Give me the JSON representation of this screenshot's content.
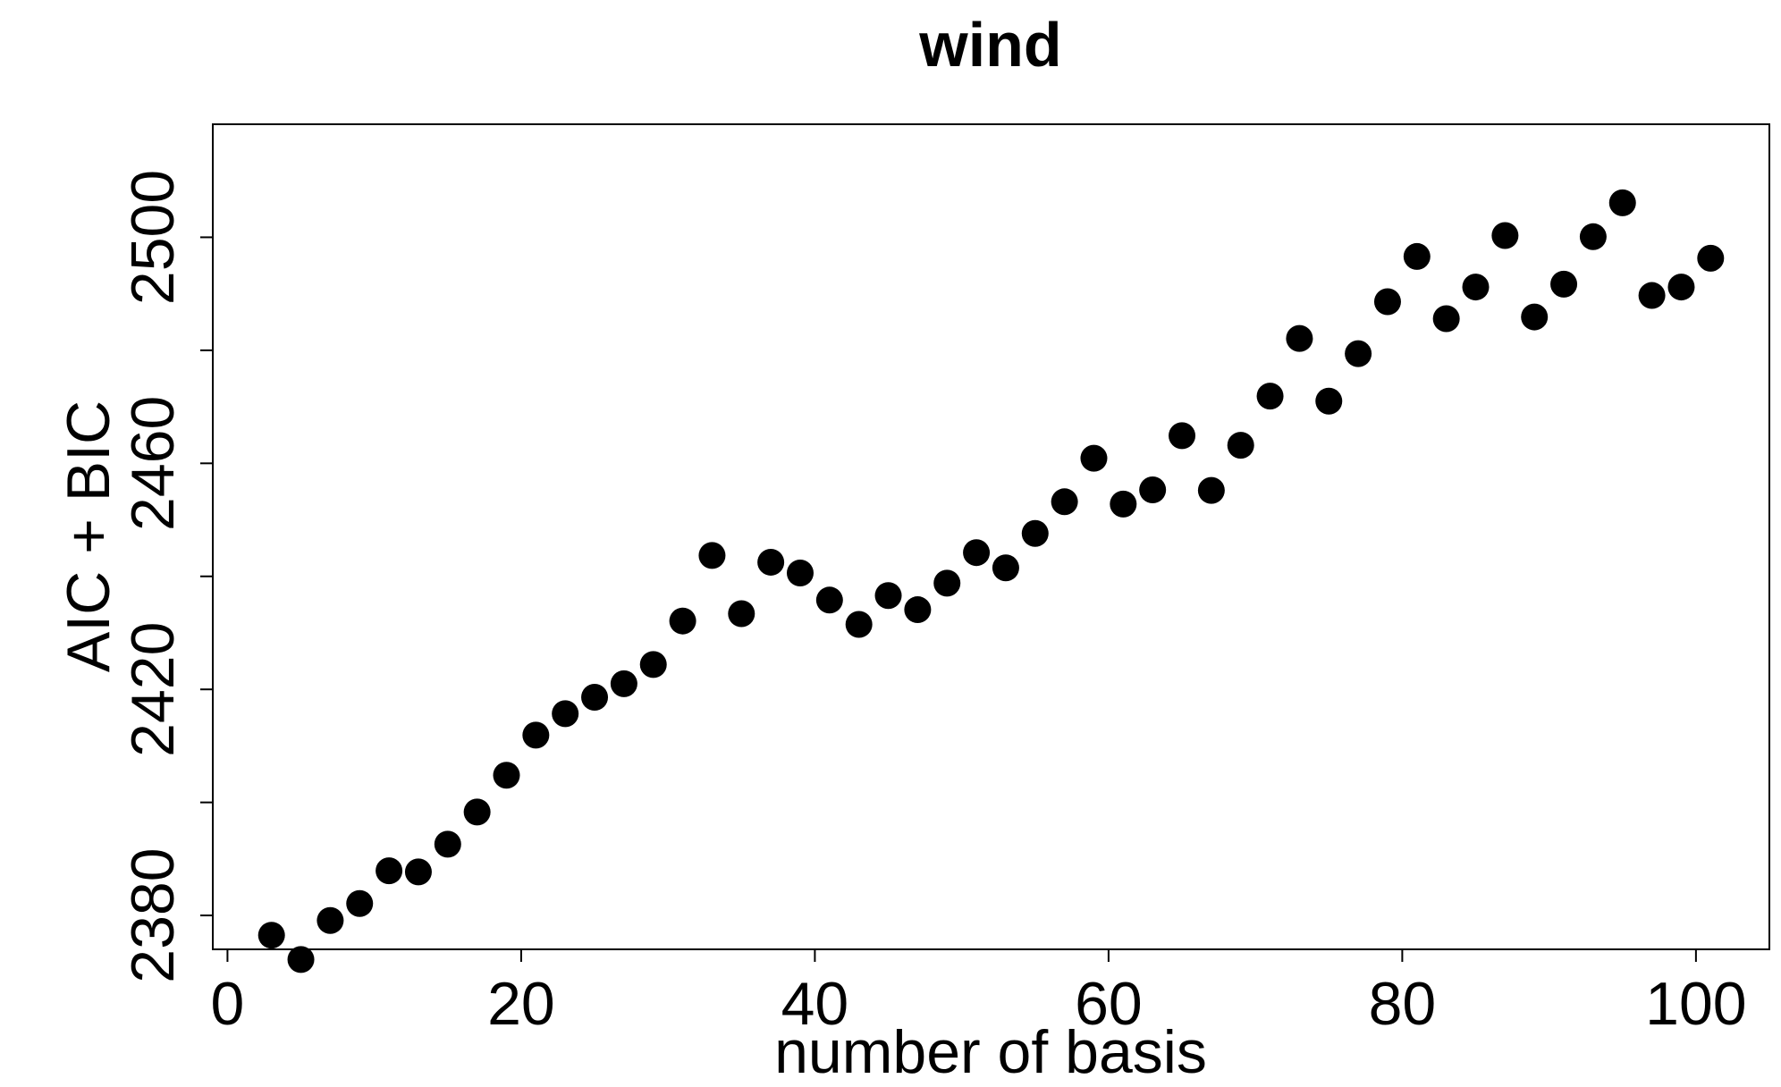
{
  "chart_data": {
    "type": "scatter",
    "title": "wind",
    "xlabel": "number of basis",
    "ylabel": "AIC + BIC",
    "xlim": [
      -1,
      105
    ],
    "ylim": [
      2374,
      2520
    ],
    "xticks": [
      0,
      20,
      40,
      60,
      80,
      100
    ],
    "xtick_labels": [
      "0",
      "20",
      "40",
      "60",
      "80",
      "100"
    ],
    "yticks": [
      2380,
      2400,
      2420,
      2440,
      2460,
      2480,
      2500
    ],
    "ytick_labels": [
      "2380",
      "",
      "2420",
      "",
      "2460",
      "",
      "2500"
    ],
    "grid": false,
    "legend": "none",
    "marker_color": "#000000",
    "series": [
      {
        "x": [
          3,
          5,
          7,
          9,
          11,
          13,
          15,
          17,
          19,
          21,
          23,
          25,
          27,
          29,
          31,
          33,
          35,
          37,
          39,
          41,
          43,
          45,
          47,
          49,
          51,
          53,
          55,
          57,
          59,
          61,
          63,
          65,
          67,
          69,
          71,
          73,
          75,
          77,
          79,
          81,
          83,
          85,
          87,
          89,
          91,
          93,
          95,
          97,
          99,
          101
        ],
        "y": [
          2376.5,
          2372.2,
          2379.1,
          2382.1,
          2387.9,
          2387.7,
          2392.6,
          2398.3,
          2404.8,
          2411.9,
          2415.7,
          2418.6,
          2421.0,
          2424.4,
          2432.1,
          2443.7,
          2433.4,
          2442.5,
          2440.6,
          2435.8,
          2431.5,
          2436.6,
          2434.1,
          2438.8,
          2444.2,
          2441.5,
          2447.6,
          2453.2,
          2460.9,
          2452.8,
          2455.3,
          2464.9,
          2455.2,
          2463.2,
          2471.9,
          2482.1,
          2471.0,
          2479.4,
          2488.6,
          2496.6,
          2485.6,
          2491.2,
          2500.3,
          2485.9,
          2491.7,
          2500.1,
          2506.1,
          2489.7,
          2491.2,
          2496.3
        ]
      }
    ]
  }
}
